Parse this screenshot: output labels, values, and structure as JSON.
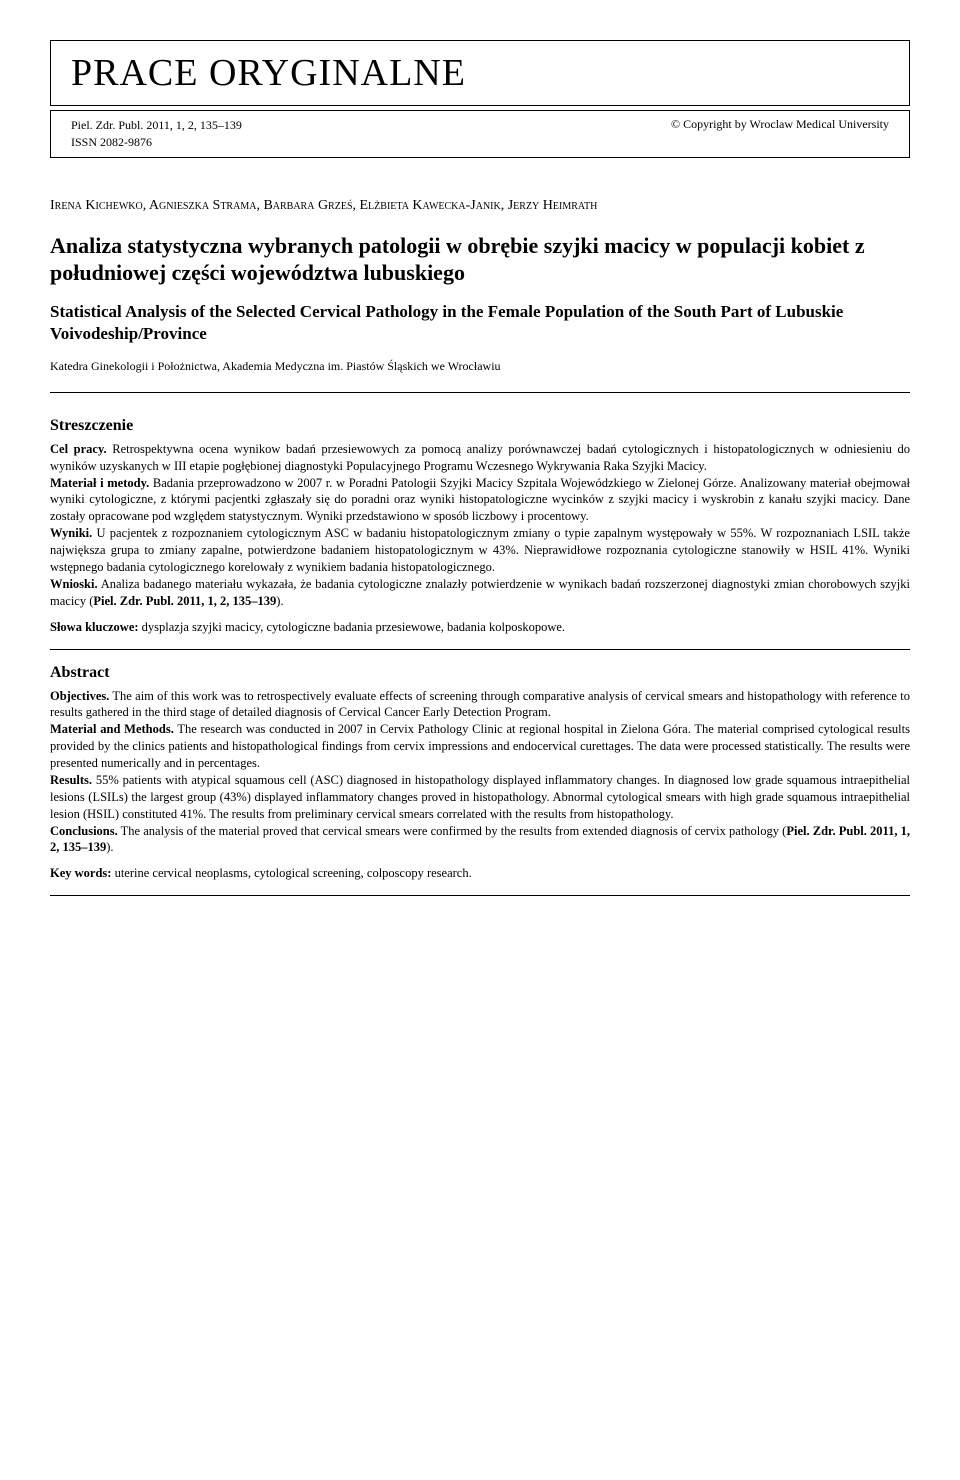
{
  "header": {
    "section_title": "PRACE ORYGINALNE",
    "journal": "Piel. Zdr. Publ. 2011, 1, 2, 135–139",
    "issn": "ISSN 2082-9876",
    "copyright": "© Copyright by Wroclaw Medical University"
  },
  "authors": "Irena Kichewko, Agnieszka Strama, Barbara Grześ, Elżbieta Kawecka-Janik, Jerzy Heimrath",
  "title_pl": "Analiza statystyczna wybranych patologii w obrębie szyjki macicy w populacji kobiet z południowej części województwa lubuskiego",
  "title_en": "Statistical Analysis of the Selected Cervical Pathology in the Female Population of the South Part of Lubuskie Voivodeship/Province",
  "affiliation": "Katedra Ginekologii i Położnictwa, Akademia Medyczna im. Piastów Śląskich we Wrocławiu",
  "streszczenie": {
    "heading": "Streszczenie",
    "cel_lbl": "Cel pracy.",
    "cel": " Retrospektywna ocena wynikow badań przesiewowych za pomocą analizy porównawczej badań cytologicznych i histopatologicznych w odniesieniu do wyników uzyskanych w III etapie pogłębionej diagnostyki Populacyjnego Programu Wczesnego Wykrywania Raka Szyjki Macicy.",
    "mat_lbl": "Materiał i metody.",
    "mat": " Badania przeprowadzono w 2007 r. w Poradni Patologii Szyjki Macicy Szpitala Wojewódzkiego w Zielonej Górze. Analizowany materiał obejmował wyniki cytologiczne, z którymi pacjentki zgłaszały się do poradni oraz wyniki histopatologiczne wycinków z szyjki macicy i wyskrobin z kanału szyjki macicy. Dane zostały opracowane pod względem statystycznym. Wyniki przedstawiono w sposób liczbowy i procentowy.",
    "wyn_lbl": "Wyniki.",
    "wyn": " U pacjentek z rozpoznaniem cytologicznym ASC w badaniu histopatologicznym zmiany o typie zapalnym występowały w 55%. W rozpoznaniach LSIL także największa grupa to zmiany zapalne, potwierdzone badaniem histopatologicznym w 43%. Nieprawidłowe rozpoznania cytologiczne stanowiły w HSIL 41%. Wyniki wstępnego badania cytologicznego korelowały z wynikiem badania histopatologicznego.",
    "wni_lbl": "Wnioski.",
    "wni": " Analiza badanego materiału wykazała, że badania cytologiczne znalazły potwierdzenie w wynikach badań rozszerzonej diagnostyki zmian chorobowych szyjki macicy (",
    "wni_ref": "Piel. Zdr. Publ. 2011, 1, 2, 135–139",
    "wni_end": ").",
    "kw_lbl": "Słowa kluczowe:",
    "kw": " dysplazja szyjki macicy, cytologiczne badania przesiewowe, badania kolposkopowe."
  },
  "abstract": {
    "heading": "Abstract",
    "obj_lbl": "Objectives.",
    "obj": " The aim of this work was to retrospectively evaluate effects of screening through comparative analysis of cervical smears and histopathology with reference to results gathered in the third stage of detailed diagnosis of Cervical Cancer Early Detection Program.",
    "mat_lbl": "Material and Methods.",
    "mat": " The research was conducted in 2007 in Cervix Pathology Clinic at regional hospital in Zielona Góra. The material comprised cytological results provided by the clinics patients and histopathological findings from cervix impressions and endocervical curettages. The data were processed statistically. The results were presented numerically and in percentages.",
    "res_lbl": "Results.",
    "res": " 55% patients with atypical squamous cell (ASC) diagnosed in histopathology displayed inflammatory changes. In diagnosed low grade squamous intraepithelial lesions (LSILs) the largest group (43%) displayed inflammatory changes proved in histopathology. Abnormal cytological smears with high grade squamous intraepithelial lesion (HSIL) constituted 41%. The results from preliminary cervical smears correlated with the results from histopathology.",
    "con_lbl": "Conclusions.",
    "con": " The analysis of the material proved that cervical smears were confirmed by the results from extended diagnosis of cervix pathology (",
    "con_ref": "Piel. Zdr. Publ. 2011, 1, 2, 135–139",
    "con_end": ").",
    "kw_lbl": "Key words:",
    "kw": " uterine cervical neoplasms, cytological screening, colposcopy research."
  }
}
